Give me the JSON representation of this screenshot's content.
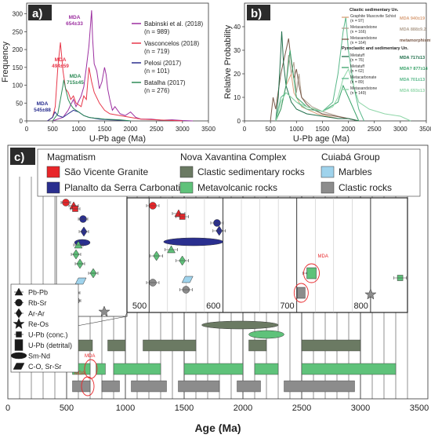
{
  "chart_data": [
    {
      "panel": "a)",
      "type": "line",
      "xlabel": "U-Pb age (Ma)",
      "ylabel": "Frequency",
      "xlim": [
        0,
        3500
      ],
      "ylim": [
        0,
        330
      ],
      "xticks": [
        0,
        500,
        1000,
        1500,
        2000,
        2500,
        3000,
        3500
      ],
      "yticks": [
        0,
        50,
        100,
        150,
        200,
        250,
        300
      ],
      "legend_position": "top-right",
      "series": [
        {
          "name": "Babinski et al. (2018)",
          "n": "(n = 989)",
          "color": "#9c2fa0",
          "x": [
            500,
            600,
            700,
            750,
            800,
            850,
            900,
            950,
            1000,
            1050,
            1100,
            1150,
            1200,
            1250,
            1270,
            1300,
            1350,
            1400,
            1450,
            1500,
            1530,
            1560,
            1600,
            1650,
            1700,
            1800,
            1900,
            2000,
            2100,
            2200,
            2400,
            2600,
            2800,
            3000,
            3200
          ],
          "y": [
            0,
            5,
            10,
            20,
            30,
            45,
            60,
            40,
            55,
            70,
            95,
            150,
            210,
            310,
            230,
            160,
            140,
            90,
            110,
            150,
            130,
            90,
            60,
            30,
            40,
            20,
            15,
            25,
            10,
            5,
            5,
            2,
            3,
            1,
            0
          ]
        },
        {
          "name": "Vasconcelos (2018)",
          "n": "(n = 719)",
          "color": "#e8384a",
          "x": [
            400,
            500,
            550,
            600,
            650,
            700,
            750,
            800,
            850,
            900,
            950,
            1000,
            1050,
            1100,
            1150,
            1200,
            1250,
            1300,
            1400,
            1500,
            1600,
            1800,
            2000,
            2200,
            2500,
            3000
          ],
          "y": [
            0,
            10,
            40,
            150,
            220,
            140,
            90,
            80,
            60,
            70,
            50,
            45,
            40,
            70,
            60,
            150,
            110,
            80,
            50,
            30,
            20,
            15,
            10,
            5,
            3,
            0
          ]
        },
        {
          "name": "Pelosi (2017)",
          "n": "(n = 101)",
          "color": "#2a2f8f",
          "x": [
            400,
            500,
            545,
            600,
            700,
            800,
            900,
            1000,
            1100,
            1200,
            1400,
            1600,
            1800,
            2000
          ],
          "y": [
            0,
            10,
            25,
            15,
            10,
            20,
            30,
            25,
            15,
            10,
            5,
            3,
            2,
            0
          ]
        },
        {
          "name": "Batalha (2017)",
          "n": "(n = 276)",
          "color": "#2e8b57",
          "x": [
            500,
            600,
            650,
            700,
            715,
            750,
            800,
            850,
            900,
            950,
            1000,
            1050,
            1100,
            1200,
            1300,
            1500,
            1800,
            2000
          ],
          "y": [
            0,
            20,
            60,
            100,
            115,
            90,
            60,
            45,
            35,
            30,
            25,
            20,
            15,
            10,
            8,
            5,
            3,
            0
          ]
        }
      ],
      "annotations": [
        {
          "text": "MDA",
          "sub": "545±88",
          "color": "#2a2f8f"
        },
        {
          "text": "MDA",
          "sub": "494±59",
          "color": "#e8384a"
        },
        {
          "text": "MDA",
          "sub": "715±45",
          "color": "#2e8b57"
        },
        {
          "text": "MDA",
          "sub": "654±33",
          "color": "#9c2fa0"
        }
      ]
    },
    {
      "panel": "b)",
      "type": "line",
      "xlabel": "U-Pb age (Ma)",
      "ylabel": "Relative Probability",
      "xlim": [
        0,
        3500
      ],
      "ylim": [
        0,
        50
      ],
      "xticks": [
        0,
        500,
        1000,
        1500,
        2000,
        2500,
        3000,
        3500
      ],
      "yticks": [
        0,
        10,
        20,
        30,
        40
      ],
      "legend_position": "top-right",
      "legend_headers": [
        "Clastic sedimentary Un.",
        "Pyroclastic and sedimentary Un."
      ],
      "series": [
        {
          "name": "Graphite Muscovite Schist",
          "n": "(n = 97)",
          "mda": "MDA 940±19",
          "color": "#d9a07a",
          "x": [
            600,
            700,
            800,
            900,
            950,
            1000,
            1100,
            1200,
            1400,
            1600,
            1800,
            2000,
            2200
          ],
          "y": [
            0,
            5,
            15,
            20,
            12,
            10,
            6,
            5,
            3,
            2,
            1,
            1,
            0
          ]
        },
        {
          "name": "Metasandstone",
          "n": "(n = 166)",
          "mda": "MDA 888±9.2",
          "color": "#b0a090",
          "x": [
            600,
            700,
            800,
            850,
            900,
            950,
            1000,
            1050,
            1100,
            1200,
            1300,
            1500,
            1800,
            2000,
            2200
          ],
          "y": [
            0,
            5,
            15,
            28,
            20,
            25,
            12,
            20,
            10,
            8,
            6,
            4,
            2,
            1,
            0
          ]
        },
        {
          "name": "Metasandstone",
          "n": "(n = 164)",
          "mda": "metamorphism? MDA 574±19 867±14",
          "color": "#7a5a4a",
          "x": [
            500,
            550,
            600,
            700,
            800,
            850,
            900,
            950,
            1000,
            1050,
            1100,
            1200,
            1300,
            1500,
            2000,
            2200
          ],
          "y": [
            0,
            10,
            5,
            20,
            30,
            35,
            25,
            18,
            22,
            15,
            10,
            7,
            5,
            3,
            1,
            0
          ]
        },
        {
          "name": "Metatuff",
          "n": "(n = 76)",
          "mda": "MDA 717±13",
          "color": "#1f6e4a",
          "x": [
            600,
            650,
            700,
            717,
            750,
            800,
            900,
            1000,
            1200,
            1500,
            1800,
            2000,
            2200
          ],
          "y": [
            0,
            10,
            30,
            38,
            25,
            15,
            8,
            5,
            3,
            2,
            1,
            1,
            0
          ]
        },
        {
          "name": "Metatuff",
          "n": "(n = 62)",
          "mda": "MDA? 877±14",
          "color": "#3aa36a",
          "x": [
            600,
            700,
            800,
            877,
            950,
            1000,
            1200,
            1500,
            1800,
            1900,
            2000,
            2200
          ],
          "y": [
            0,
            5,
            15,
            30,
            18,
            10,
            6,
            4,
            8,
            15,
            10,
            0
          ]
        },
        {
          "name": "Metacarbonate",
          "n": "(n = 89)",
          "mda": "MDA 701±13",
          "color": "#5ab88a",
          "x": [
            600,
            700,
            800,
            900,
            1000,
            1200,
            1500,
            1700,
            1800,
            1900,
            1950,
            2000,
            2100,
            2200,
            2300
          ],
          "y": [
            0,
            10,
            12,
            10,
            8,
            5,
            4,
            8,
            20,
            38,
            44,
            30,
            15,
            5,
            0
          ]
        },
        {
          "name": "Metasandstone",
          "n": "(n = 149)",
          "mda": "MDA 693±13",
          "color": "#8fd6a8",
          "x": [
            600,
            700,
            800,
            900,
            1000,
            1200,
            1500,
            1700,
            1800,
            1900,
            2000,
            2100,
            2200,
            2400,
            2700,
            3000,
            3200
          ],
          "y": [
            0,
            8,
            12,
            10,
            8,
            6,
            4,
            6,
            10,
            18,
            22,
            15,
            8,
            5,
            3,
            2,
            0
          ]
        }
      ]
    },
    {
      "panel": "c)",
      "type": "scatter",
      "xlabel": "Age (Ma)",
      "xlim": [
        0,
        3500
      ],
      "xticks": [
        0,
        500,
        1000,
        1500,
        2000,
        2500,
        3000,
        3500
      ],
      "inset_xticks": [
        500,
        600,
        700,
        800
      ],
      "legend": {
        "groups": [
          {
            "title": "Magmatism",
            "items": [
              {
                "label": "São Vicente Granite",
                "color": "#e8262a"
              },
              {
                "label": "Planalto da Serra Carbonatite",
                "color": "#2a2f8f"
              }
            ]
          },
          {
            "title": "Nova Xavantina Complex",
            "items": [
              {
                "label": "Clastic sedimentary rocks",
                "color": "#6b7a63"
              },
              {
                "label": "Metavolcanic rocks",
                "color": "#5fc27a"
              }
            ]
          },
          {
            "title": "Cuiabá Group",
            "items": [
              {
                "label": "Marbles",
                "color": "#9fd3ec"
              },
              {
                "label": "Clastic rocks",
                "color": "#8c8c8c"
              }
            ]
          }
        ]
      },
      "method_legend": [
        "Pb-Pb",
        "Rb-Sr",
        "Ar-Ar",
        "Re-Os",
        "U-Pb (conc.)",
        "U-Pb (detrital)",
        "Sm-Nd",
        "C-O, Sr-Sr"
      ],
      "mda_label": "MDA",
      "symbols": [
        {
          "age": 505,
          "unit": "São Vicente Granite",
          "method": "Rb-Sr"
        },
        {
          "age": 540,
          "unit": "São Vicente Granite",
          "method": "Pb-Pb"
        },
        {
          "age": 545,
          "unit": "São Vicente Granite",
          "method": "U-Pb (conc.)"
        },
        {
          "age": 592,
          "unit": "Planalto da Serra Carbonatite",
          "method": "Rb-Sr"
        },
        {
          "age": 595,
          "unit": "Planalto da Serra Carbonatite",
          "method": "Ar-Ar"
        },
        {
          "age": 560,
          "unit": "Planalto da Serra Carbonatite",
          "method": "Sm-Nd"
        },
        {
          "age": 510,
          "unit": "Metavolcanic rocks",
          "method": "Ar-Ar"
        },
        {
          "age": 530,
          "unit": "Metavolcanic rocks",
          "method": "Pb-Pb"
        },
        {
          "age": 545,
          "unit": "Metavolcanic rocks",
          "method": "Ar-Ar"
        },
        {
          "age": 717,
          "unit": "Metavolcanic rocks",
          "method": "Ar-Ar"
        },
        {
          "age": 720,
          "unit": "Metavolcanic rocks",
          "method": "U-Pb (detrital)"
        },
        {
          "age": 840,
          "unit": "Metavolcanic rocks",
          "method": "U-Pb (conc.)"
        },
        {
          "age": 552,
          "unit": "Marbles",
          "method": "C-O, Sr-Sr"
        },
        {
          "age": 505,
          "unit": "Clastic rocks",
          "method": "Rb-Sr"
        },
        {
          "age": 550,
          "unit": "Clastic rocks",
          "method": "Rb-Sr"
        },
        {
          "age": 706,
          "unit": "Clastic rocks",
          "method": "U-Pb (detrital)"
        },
        {
          "age": 800,
          "unit": "Clastic rocks",
          "method": "Re-Os"
        }
      ],
      "detrital_bars": [
        {
          "unit": "Clastic sedimentary rocks",
          "ranges": [
            [
              550,
              720
            ],
            [
              850,
              1000
            ],
            [
              1150,
              1600
            ],
            [
              2050,
              2200
            ],
            [
              2500,
              3000
            ]
          ]
        },
        {
          "unit": "Metavolcanic rocks",
          "ranges": [
            [
              550,
              700
            ],
            [
              750,
              830
            ],
            [
              900,
              1300
            ],
            [
              1500,
              2000
            ],
            [
              2100,
              2300
            ],
            [
              2500,
              3300
            ]
          ]
        },
        {
          "unit": "Clastic rocks",
          "ranges": [
            [
              550,
              700
            ],
            [
              800,
              950
            ],
            [
              1050,
              1350
            ],
            [
              1450,
              1800
            ],
            [
              1950,
              2150
            ],
            [
              2350,
              2950
            ]
          ]
        }
      ],
      "smnd_ellipses": [
        {
          "unit": "Clastic sedimentary rocks",
          "range": [
            1650,
            2300
          ]
        },
        {
          "unit": "Metavolcanic rocks",
          "range": [
            2050,
            2350
          ]
        }
      ]
    }
  ]
}
